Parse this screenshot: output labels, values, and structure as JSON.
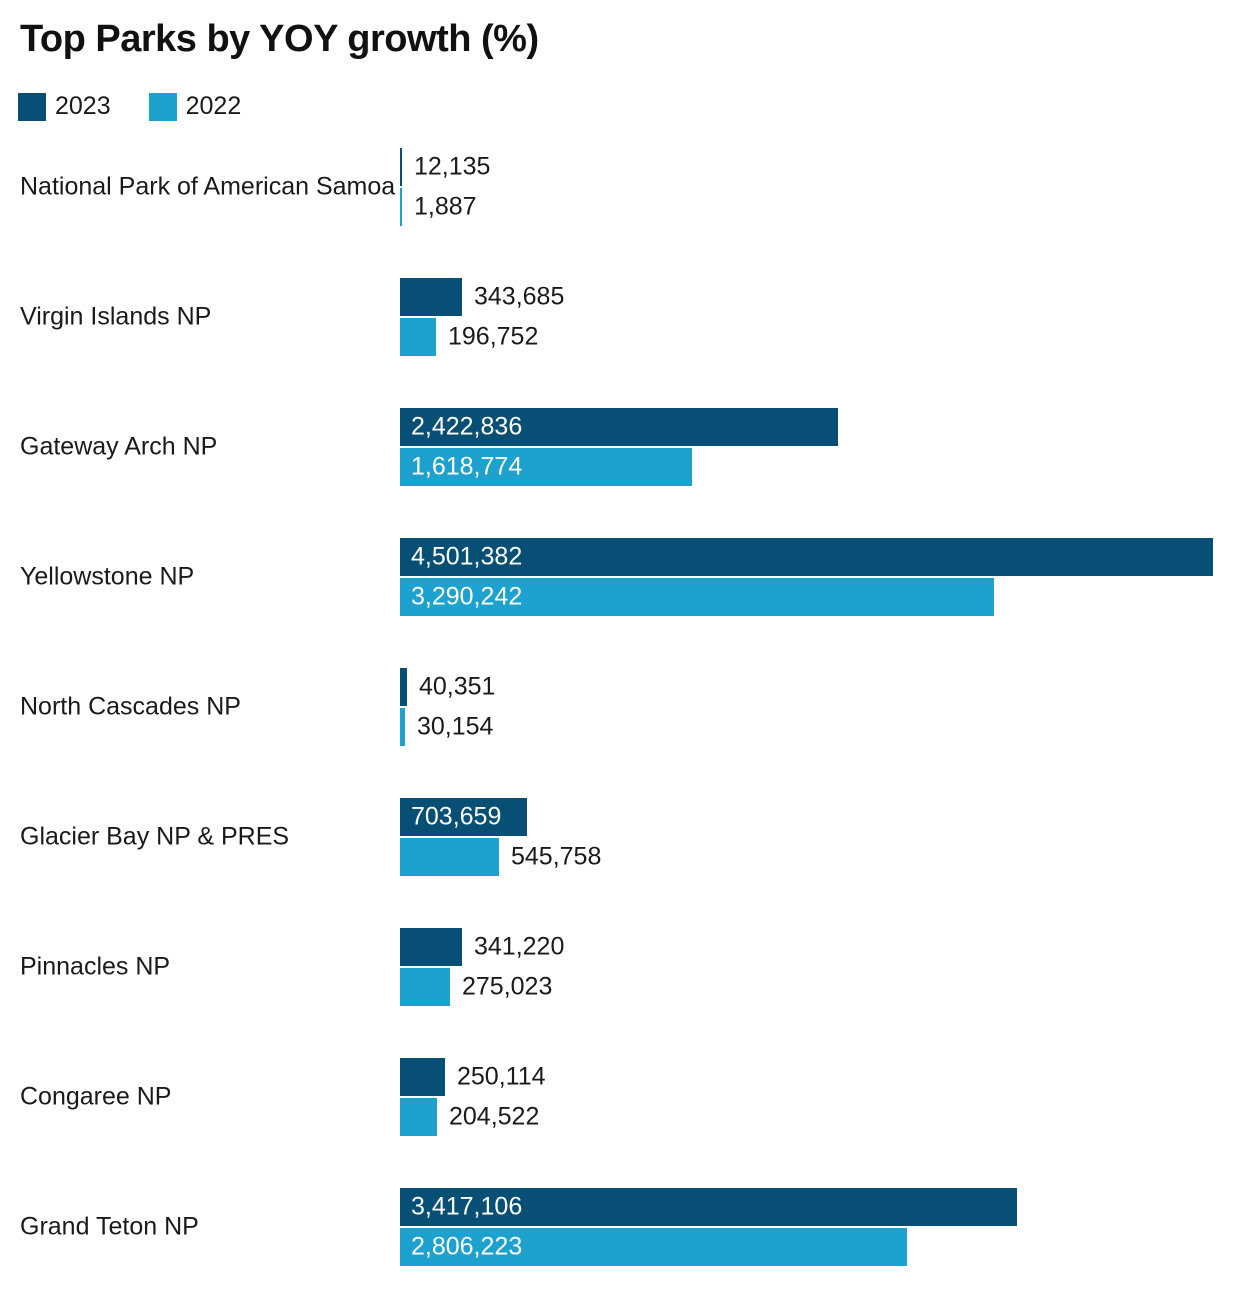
{
  "title": "Top Parks by YOY growth (%)",
  "colors": {
    "series_2023": "#084f75",
    "series_2022": "#1da1ce",
    "text": "#1a1a1a",
    "value_inside_text": "#ffffff",
    "background": "#ffffff"
  },
  "chart_data": {
    "type": "bar",
    "orientation": "horizontal",
    "title": "Top Parks by YOY growth (%)",
    "categories": [
      "National Park of American Samoa",
      "Virgin Islands NP",
      "Gateway Arch NP",
      "Yellowstone NP",
      "North Cascades NP",
      "Glacier Bay NP & PRES",
      "Pinnacles NP",
      "Congaree NP",
      "Grand Teton NP"
    ],
    "series": [
      {
        "name": "2023",
        "color": "#084f75",
        "values": [
          12135,
          343685,
          2422836,
          4501382,
          40351,
          703659,
          341220,
          250114,
          3417106
        ]
      },
      {
        "name": "2022",
        "color": "#1da1ce",
        "values": [
          1887,
          196752,
          1618774,
          3290242,
          30154,
          545758,
          275023,
          204522,
          2806223
        ]
      }
    ],
    "value_labels": [
      [
        "12,135",
        "343,685",
        "2,422,836",
        "4,501,382",
        "40,351",
        "703,659",
        "341,220",
        "250,114",
        "3,417,106"
      ],
      [
        "1,887",
        "196,752",
        "1,618,774",
        "3,290,242",
        "30,154",
        "545,758",
        "275,023",
        "204,522",
        "2,806,223"
      ]
    ],
    "xlim": [
      0,
      4501382
    ],
    "grid": false,
    "legend_position": "top-left",
    "value_label_format": "thousands-comma"
  }
}
